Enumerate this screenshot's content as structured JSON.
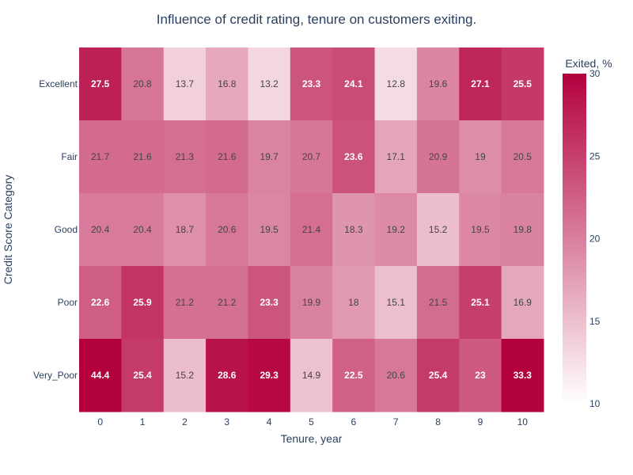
{
  "chart_data": {
    "type": "heatmap",
    "title": "Influence of credit rating, tenure on customers exiting.",
    "xlabel": "Tenure, year",
    "ylabel": "Credit Score Category",
    "x": [
      "0",
      "1",
      "2",
      "3",
      "4",
      "5",
      "6",
      "7",
      "8",
      "9",
      "10"
    ],
    "y": [
      "Excellent",
      "Fair",
      "Good",
      "Poor",
      "Very_Poor"
    ],
    "z": [
      [
        27.5,
        20.8,
        13.7,
        16.8,
        13.2,
        23.3,
        24.1,
        12.8,
        19.6,
        27.1,
        25.5
      ],
      [
        21.7,
        21.6,
        21.3,
        21.6,
        19.7,
        20.7,
        23.6,
        17.1,
        20.9,
        19,
        20.5
      ],
      [
        20.4,
        20.4,
        18.7,
        20.6,
        19.5,
        21.4,
        18.3,
        19.2,
        15.2,
        19.5,
        19.8
      ],
      [
        22.6,
        25.9,
        21.2,
        21.2,
        23.3,
        19.9,
        18,
        15.1,
        21.5,
        25.1,
        16.9
      ],
      [
        44.4,
        25.4,
        15.2,
        28.6,
        29.3,
        14.9,
        22.5,
        20.6,
        25.4,
        23,
        33.3
      ]
    ],
    "zlim": [
      10,
      30
    ],
    "colorbar": {
      "title": "Exited, %",
      "ticks": [
        10,
        15,
        20,
        25,
        30
      ],
      "colors": {
        "low": "#ffffff",
        "high": "#b3003f"
      }
    }
  }
}
